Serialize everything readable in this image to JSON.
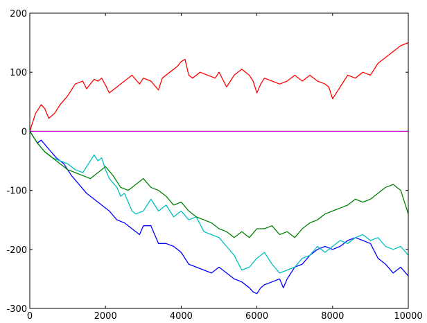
{
  "chart_data": {
    "type": "line",
    "title": "",
    "xlabel": "",
    "ylabel": "",
    "xlim": [
      0,
      10000
    ],
    "ylim": [
      -300,
      200
    ],
    "grid": false,
    "legend": "none",
    "x_ticks": [
      0,
      2000,
      4000,
      6000,
      8000,
      10000
    ],
    "x_tick_labels": [
      "0",
      "2000",
      "4000",
      "6000",
      "8000",
      "10000"
    ],
    "y_ticks": [
      200,
      100,
      0,
      -100,
      -200,
      -300
    ],
    "y_tick_labels": [
      "200",
      "100",
      "0",
      "-100",
      "-200",
      "-300"
    ],
    "series": [
      {
        "color": "#ff0000",
        "x": [
          0,
          150,
          300,
          400,
          500,
          650,
          800,
          1000,
          1200,
          1400,
          1500,
          1700,
          1800,
          1900,
          2000,
          2100,
          2300,
          2500,
          2700,
          2900,
          3000,
          3200,
          3400,
          3500,
          3700,
          3900,
          4000,
          4100,
          4200,
          4300,
          4500,
          4700,
          4900,
          5000,
          5200,
          5400,
          5600,
          5800,
          5900,
          6000,
          6100,
          6200,
          6400,
          6600,
          6800,
          7000,
          7200,
          7400,
          7600,
          7800,
          7900,
          8000,
          8200,
          8400,
          8600,
          8800,
          9000,
          9200,
          9400,
          9600,
          9800,
          10000
        ],
        "y": [
          0,
          30,
          45,
          38,
          22,
          30,
          45,
          60,
          80,
          85,
          72,
          88,
          85,
          90,
          78,
          65,
          75,
          85,
          95,
          80,
          90,
          85,
          70,
          90,
          100,
          110,
          118,
          122,
          95,
          90,
          100,
          95,
          90,
          100,
          75,
          95,
          105,
          95,
          85,
          65,
          80,
          90,
          85,
          80,
          85,
          95,
          85,
          95,
          85,
          80,
          75,
          55,
          75,
          95,
          90,
          100,
          95,
          115,
          125,
          135,
          145,
          150
        ]
      },
      {
        "color": "#cc00cc",
        "x": [
          0,
          10000
        ],
        "y": [
          0,
          0
        ]
      },
      {
        "color": "#0000ff",
        "x": [
          0,
          100,
          200,
          300,
          500,
          700,
          900,
          1100,
          1300,
          1500,
          1700,
          1900,
          2100,
          2300,
          2500,
          2700,
          2900,
          3000,
          3200,
          3400,
          3600,
          3800,
          4000,
          4200,
          4400,
          4600,
          4800,
          5000,
          5200,
          5400,
          5600,
          5800,
          5900,
          6000,
          6100,
          6200,
          6400,
          6600,
          6700,
          6800,
          7000,
          7200,
          7400,
          7600,
          7800,
          8000,
          8200,
          8400,
          8600,
          8800,
          9000,
          9200,
          9400,
          9600,
          9800,
          10000
        ],
        "y": [
          0,
          -10,
          -20,
          -15,
          -30,
          -45,
          -55,
          -75,
          -90,
          -105,
          -115,
          -125,
          -135,
          -150,
          -155,
          -165,
          -175,
          -160,
          -160,
          -190,
          -190,
          -195,
          -205,
          -225,
          -230,
          -235,
          -240,
          -230,
          -240,
          -250,
          -255,
          -265,
          -272,
          -275,
          -265,
          -260,
          -255,
          -250,
          -265,
          -250,
          -230,
          -225,
          -210,
          -200,
          -195,
          -200,
          -195,
          -185,
          -180,
          -185,
          -190,
          -215,
          -225,
          -240,
          -230,
          -245
        ]
      },
      {
        "color": "#00bfbf",
        "x": [
          0,
          200,
          400,
          600,
          800,
          1000,
          1200,
          1400,
          1500,
          1700,
          1800,
          1900,
          2000,
          2100,
          2300,
          2400,
          2500,
          2600,
          2700,
          2800,
          3000,
          3200,
          3400,
          3600,
          3800,
          4000,
          4200,
          4400,
          4600,
          4800,
          5000,
          5200,
          5400,
          5600,
          5800,
          6000,
          6200,
          6400,
          6600,
          6800,
          7000,
          7200,
          7400,
          7600,
          7800,
          8000,
          8200,
          8400,
          8600,
          8800,
          9000,
          9200,
          9400,
          9600,
          9800,
          10000
        ],
        "y": [
          0,
          -20,
          -35,
          -45,
          -50,
          -55,
          -65,
          -70,
          -60,
          -40,
          -50,
          -45,
          -65,
          -80,
          -95,
          -110,
          -105,
          -120,
          -135,
          -140,
          -135,
          -115,
          -135,
          -125,
          -145,
          -135,
          -150,
          -145,
          -170,
          -175,
          -180,
          -195,
          -210,
          -235,
          -230,
          -215,
          -205,
          -225,
          -240,
          -235,
          -230,
          -215,
          -210,
          -195,
          -205,
          -195,
          -185,
          -190,
          -180,
          -175,
          -185,
          -180,
          -195,
          -200,
          -195,
          -210
        ]
      },
      {
        "color": "#008000",
        "x": [
          0,
          200,
          400,
          600,
          800,
          1000,
          1200,
          1400,
          1600,
          1800,
          2000,
          2200,
          2400,
          2600,
          2800,
          3000,
          3200,
          3400,
          3600,
          3800,
          4000,
          4200,
          4400,
          4600,
          4800,
          5000,
          5200,
          5400,
          5600,
          5800,
          6000,
          6200,
          6400,
          6600,
          6800,
          7000,
          7200,
          7400,
          7600,
          7800,
          8000,
          8200,
          8400,
          8600,
          8800,
          9000,
          9200,
          9400,
          9600,
          9800,
          10000
        ],
        "y": [
          0,
          -20,
          -35,
          -45,
          -55,
          -65,
          -70,
          -75,
          -80,
          -70,
          -60,
          -75,
          -95,
          -100,
          -90,
          -80,
          -95,
          -100,
          -110,
          -125,
          -120,
          -135,
          -145,
          -150,
          -155,
          -165,
          -170,
          -180,
          -170,
          -180,
          -165,
          -165,
          -160,
          -175,
          -170,
          -180,
          -165,
          -155,
          -150,
          -140,
          -135,
          -130,
          -125,
          -115,
          -120,
          -115,
          -105,
          -95,
          -90,
          -100,
          -140
        ]
      }
    ]
  }
}
